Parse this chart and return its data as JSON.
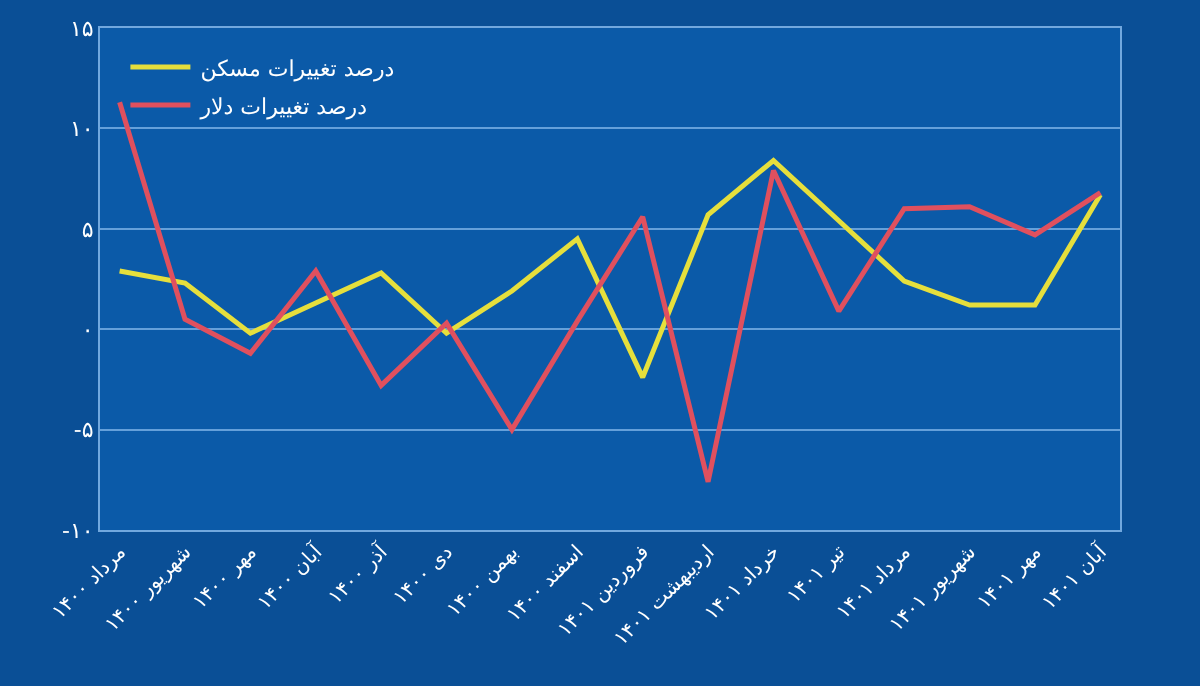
{
  "chart_data": {
    "type": "line",
    "categories": [
      "مرداد ۱۴۰۰",
      "شهریور ۱۴۰۰",
      "مهر ۱۴۰۰",
      "آبان ۱۴۰۰",
      "آذر ۱۴۰۰",
      "دی ۱۴۰۰",
      "بهمن ۱۴۰۰",
      "اسفند ۱۴۰۰",
      "فروردین ۱۴۰۱",
      "اردیبهشت ۱۴۰۱",
      "خرداد ۱۴۰۱",
      "تیر ۱۴۰۱",
      "مرداد ۱۴۰۱",
      "شهریور ۱۴۰۱",
      "مهر ۱۴۰۱",
      "آبان ۱۴۰۱"
    ],
    "series": [
      {
        "name": "درصد تغییرات مسکن",
        "color": "#e6df3c",
        "values": [
          2.9,
          2.3,
          -0.2,
          1.3,
          2.8,
          -0.2,
          1.9,
          4.5,
          -2.4,
          5.7,
          8.4,
          5.4,
          2.4,
          1.2,
          1.2,
          6.7
        ]
      },
      {
        "name": "درصد تغییرات دلار",
        "color": "#e0505e",
        "values": [
          11.3,
          0.5,
          -1.2,
          2.9,
          -2.8,
          0.3,
          -5.0,
          0.4,
          5.6,
          -7.6,
          7.9,
          0.9,
          6.0,
          6.1,
          4.7,
          6.8
        ]
      }
    ],
    "ylim": [
      -10,
      15
    ],
    "yticks": [
      {
        "value": -10,
        "label": "-۱۰"
      },
      {
        "value": -5,
        "label": "-۵"
      },
      {
        "value": 0,
        "label": "۰"
      },
      {
        "value": 5,
        "label": "۵"
      },
      {
        "value": 10,
        "label": "۱۰"
      },
      {
        "value": 15,
        "label": "۱۵"
      }
    ],
    "grid": "y",
    "legend": "top left",
    "marker": "none",
    "line_style": "solid"
  }
}
